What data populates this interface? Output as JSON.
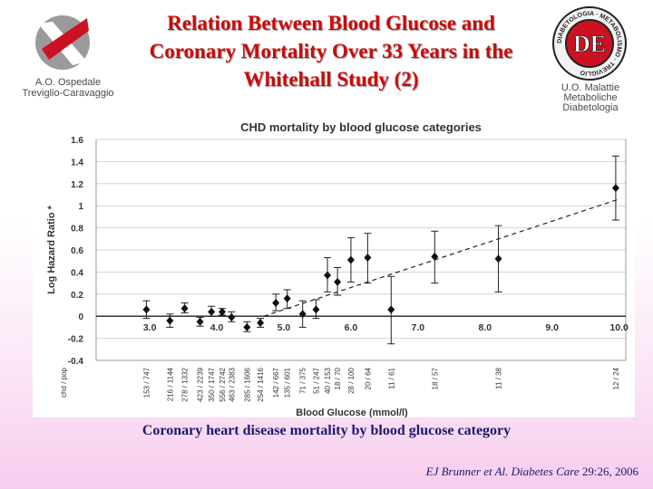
{
  "header": {
    "title": "Relation Between Blood Glucose and Coronary Mortality Over 33 Years in the Whitehall Study (2)",
    "hospital_line1": "A.O. Ospedale",
    "hospital_line2": "Treviglio-Caravaggio",
    "unit_line1": "U.O. Malattie",
    "unit_line2": "Metaboliche",
    "unit_line3": "Diabetologia",
    "seal_text": "DIABETOLOGIA · METABOLISMO · TREVIGLIO",
    "seal_letters": "DE"
  },
  "caption": "Coronary heart disease mortality by blood glucose category",
  "citation": {
    "authors_journal": "EJ Brunner et Al. Diabetes Care",
    "ref": " 29:26, 2006"
  },
  "colors": {
    "title_red": "#cc0a0a",
    "caption_navy": "#1a1a6e",
    "logo_red": "#cc1122",
    "logo_grey": "#9a9a9a"
  },
  "chart_data": {
    "type": "scatter",
    "title": "CHD mortality by blood glucose categories",
    "xlabel": "Blood Glucose (mmol/l)",
    "ylabel": "Log Hazard Ratio *",
    "xlim": [
      2.2,
      10.1
    ],
    "ylim": [
      -0.4,
      1.6
    ],
    "yticks": [
      -0.4,
      -0.2,
      0,
      0.2,
      0.4,
      0.6,
      0.8,
      1,
      1.2,
      1.4,
      1.6
    ],
    "ytick_labels": [
      "-0.4",
      "-0.2",
      "0",
      "0.2",
      "0.4",
      "0.6",
      "0.8",
      "1",
      "1.2",
      "1.4",
      "1.6"
    ],
    "xticks": [
      3,
      4,
      5,
      6,
      7,
      8,
      9,
      10
    ],
    "xtick_labels": [
      "3.0",
      "4.0",
      "5.0",
      "6.0",
      "7.0",
      "8.0",
      "9.0",
      "10.0"
    ],
    "grid": "horizontal",
    "reference_line": 0,
    "trend_line": {
      "x": [
        4.7,
        10.0
      ],
      "y": [
        0.0,
        1.06
      ]
    },
    "count_header": "chd / pop",
    "points": [
      {
        "x": 2.95,
        "y": 0.06,
        "lo": -0.02,
        "hi": 0.14,
        "label": "153 / 747"
      },
      {
        "x": 3.3,
        "y": -0.04,
        "lo": -0.1,
        "hi": 0.02,
        "label": "216 / 1144"
      },
      {
        "x": 3.52,
        "y": 0.07,
        "lo": 0.03,
        "hi": 0.12,
        "label": "278 / 1332"
      },
      {
        "x": 3.75,
        "y": -0.05,
        "lo": -0.09,
        "hi": -0.01,
        "label": "423 / 2239"
      },
      {
        "x": 3.92,
        "y": 0.04,
        "lo": 0.0,
        "hi": 0.09,
        "label": "350 / 1747"
      },
      {
        "x": 4.08,
        "y": 0.04,
        "lo": 0.01,
        "hi": 0.07,
        "label": "556 / 2742"
      },
      {
        "x": 4.22,
        "y": -0.01,
        "lo": -0.05,
        "hi": 0.04,
        "label": "463 / 2383"
      },
      {
        "x": 4.45,
        "y": -0.1,
        "lo": -0.14,
        "hi": -0.05,
        "label": "285 / 1606"
      },
      {
        "x": 4.65,
        "y": -0.06,
        "lo": -0.1,
        "hi": -0.02,
        "label": "254 / 1416"
      },
      {
        "x": 4.88,
        "y": 0.12,
        "lo": 0.05,
        "hi": 0.2,
        "label": "142 / 667"
      },
      {
        "x": 5.05,
        "y": 0.16,
        "lo": 0.07,
        "hi": 0.24,
        "label": "135 / 601"
      },
      {
        "x": 5.28,
        "y": 0.02,
        "lo": -0.1,
        "hi": 0.14,
        "label": "71 / 375"
      },
      {
        "x": 5.48,
        "y": 0.06,
        "lo": -0.02,
        "hi": 0.15,
        "label": "51 / 247"
      },
      {
        "x": 5.65,
        "y": 0.37,
        "lo": 0.22,
        "hi": 0.53,
        "label": "40 / 153"
      },
      {
        "x": 5.8,
        "y": 0.31,
        "lo": 0.19,
        "hi": 0.44,
        "label": "18 / 70"
      },
      {
        "x": 6.0,
        "y": 0.51,
        "lo": 0.31,
        "hi": 0.71,
        "label": "28 / 100"
      },
      {
        "x": 6.25,
        "y": 0.53,
        "lo": 0.3,
        "hi": 0.75,
        "label": "20 / 64"
      },
      {
        "x": 6.6,
        "y": 0.06,
        "lo": -0.25,
        "hi": 0.36,
        "label": "11 / 61"
      },
      {
        "x": 7.25,
        "y": 0.54,
        "lo": 0.3,
        "hi": 0.77,
        "label": "18 / 57"
      },
      {
        "x": 8.2,
        "y": 0.52,
        "lo": 0.22,
        "hi": 0.82,
        "label": "11 / 38"
      },
      {
        "x": 9.95,
        "y": 1.16,
        "lo": 0.87,
        "hi": 1.45,
        "label": "12 / 24"
      }
    ]
  }
}
